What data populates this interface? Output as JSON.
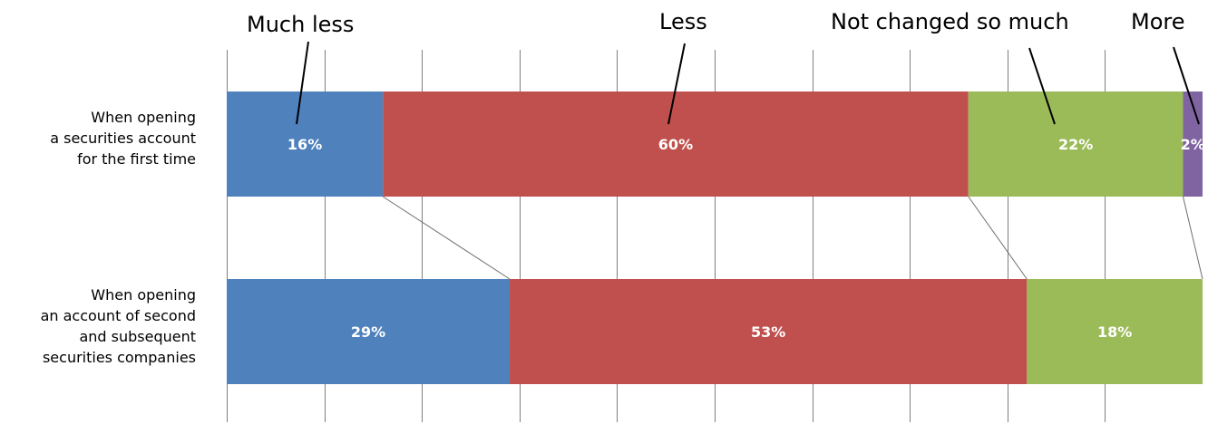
{
  "chart_data": {
    "type": "bar",
    "orientation": "horizontal",
    "stacked": true,
    "percent_stacked": true,
    "categories": [
      "When opening\na securities account\nfor the first time",
      "When opening\nan account of second\nand subsequent\nsecurities companies"
    ],
    "series": [
      {
        "name": "Much less",
        "values": [
          16,
          29
        ],
        "labels": [
          "16%",
          "29%"
        ],
        "color": "#4F81BD"
      },
      {
        "name": "Less",
        "values": [
          60,
          53
        ],
        "labels": [
          "60%",
          "53%"
        ],
        "color": "#C0504D"
      },
      {
        "name": "Not changed so much",
        "values": [
          22,
          18
        ],
        "labels": [
          "22%",
          "18%"
        ],
        "color": "#9BBB59"
      },
      {
        "name": "More",
        "values": [
          2,
          0
        ],
        "labels": [
          "2%",
          ""
        ],
        "color": "#8064A2"
      }
    ],
    "xlim": [
      0,
      100
    ],
    "grid": true,
    "legend": "top, callout lines to first bar",
    "series_lines": true
  }
}
